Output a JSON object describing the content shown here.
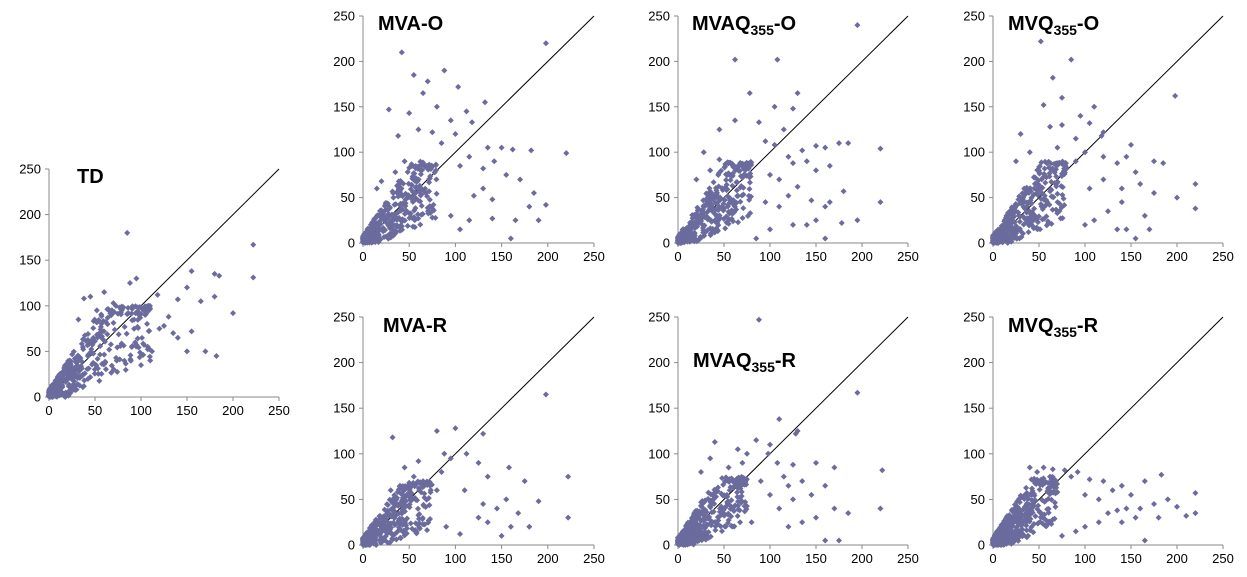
{
  "chart_data": [
    {
      "type": "scatter",
      "title_parts": [
        "TD"
      ],
      "xlim": [
        0,
        250
      ],
      "ylim": [
        0,
        250
      ],
      "ticks": [
        0,
        50,
        100,
        150,
        200,
        250
      ],
      "reference_line": "y = x",
      "marker_color": "#6b6b9e",
      "outliers": [
        [
          85,
          180
        ],
        [
          222,
          167
        ],
        [
          155,
          138
        ],
        [
          180,
          135
        ],
        [
          185,
          133
        ],
        [
          222,
          131
        ],
        [
          95,
          130
        ],
        [
          88,
          125
        ],
        [
          150,
          120
        ],
        [
          180,
          110
        ],
        [
          140,
          107
        ],
        [
          165,
          105
        ],
        [
          200,
          92
        ],
        [
          125,
          78
        ],
        [
          120,
          75
        ],
        [
          135,
          70
        ],
        [
          140,
          65
        ],
        [
          150,
          50
        ],
        [
          170,
          50
        ],
        [
          182,
          45
        ],
        [
          110,
          40
        ],
        [
          100,
          35
        ],
        [
          155,
          72
        ],
        [
          130,
          88
        ],
        [
          108,
          100
        ],
        [
          118,
          112
        ],
        [
          112,
          50
        ],
        [
          60,
          115
        ],
        [
          70,
          103
        ],
        [
          45,
          110
        ],
        [
          38,
          108
        ],
        [
          52,
          95
        ],
        [
          32,
          85
        ]
      ],
      "cluster": {
        "x_range": [
          0,
          110
        ],
        "y_range": [
          0,
          100
        ],
        "slope": 1.0
      }
    },
    {
      "type": "scatter",
      "title_parts": [
        "MVA-O"
      ],
      "xlim": [
        0,
        250
      ],
      "ylim": [
        0,
        250
      ],
      "ticks": [
        0,
        50,
        100,
        150,
        200,
        250
      ],
      "reference_line": "y = x",
      "marker_color": "#6b6b9e",
      "outliers": [
        [
          198,
          220
        ],
        [
          42,
          210
        ],
        [
          88,
          190
        ],
        [
          55,
          185
        ],
        [
          70,
          178
        ],
        [
          103,
          172
        ],
        [
          65,
          165
        ],
        [
          132,
          155
        ],
        [
          80,
          150
        ],
        [
          28,
          147
        ],
        [
          112,
          145
        ],
        [
          50,
          143
        ],
        [
          95,
          135
        ],
        [
          118,
          133
        ],
        [
          60,
          125
        ],
        [
          75,
          122
        ],
        [
          100,
          120
        ],
        [
          85,
          110
        ],
        [
          135,
          105
        ],
        [
          150,
          105
        ],
        [
          162,
          103
        ],
        [
          182,
          102
        ],
        [
          220,
          99
        ],
        [
          115,
          95
        ],
        [
          142,
          90
        ],
        [
          105,
          85
        ],
        [
          130,
          82
        ],
        [
          155,
          75
        ],
        [
          170,
          70
        ],
        [
          130,
          60
        ],
        [
          185,
          55
        ],
        [
          120,
          52
        ],
        [
          140,
          48
        ],
        [
          198,
          42
        ],
        [
          190,
          25
        ],
        [
          165,
          25
        ],
        [
          140,
          27
        ],
        [
          115,
          25
        ],
        [
          95,
          30
        ],
        [
          75,
          28
        ],
        [
          160,
          5
        ],
        [
          105,
          15
        ],
        [
          180,
          40
        ],
        [
          45,
          90
        ],
        [
          35,
          78
        ],
        [
          20,
          68
        ],
        [
          15,
          60
        ],
        [
          38,
          118
        ]
      ],
      "cluster": {
        "x_range": [
          0,
          80
        ],
        "y_range": [
          0,
          90
        ],
        "slope": 1.0
      }
    },
    {
      "type": "scatter",
      "title_parts": [
        "MVAQ",
        "355",
        "-O"
      ],
      "xlim": [
        0,
        250
      ],
      "ylim": [
        0,
        250
      ],
      "ticks": [
        0,
        50,
        100,
        150,
        200,
        250
      ],
      "reference_line": "y = x",
      "marker_color": "#6b6b9e",
      "outliers": [
        [
          195,
          240
        ],
        [
          108,
          202
        ],
        [
          62,
          202
        ],
        [
          78,
          165
        ],
        [
          130,
          165
        ],
        [
          105,
          150
        ],
        [
          125,
          148
        ],
        [
          62,
          135
        ],
        [
          88,
          133
        ],
        [
          115,
          125
        ],
        [
          45,
          125
        ],
        [
          95,
          112
        ],
        [
          105,
          108
        ],
        [
          150,
          107
        ],
        [
          160,
          105
        ],
        [
          175,
          110
        ],
        [
          185,
          110
        ],
        [
          220,
          104
        ],
        [
          135,
          102
        ],
        [
          120,
          95
        ],
        [
          140,
          90
        ],
        [
          125,
          88
        ],
        [
          165,
          85
        ],
        [
          150,
          80
        ],
        [
          100,
          75
        ],
        [
          110,
          70
        ],
        [
          130,
          62
        ],
        [
          180,
          57
        ],
        [
          120,
          52
        ],
        [
          145,
          47
        ],
        [
          165,
          45
        ],
        [
          220,
          45
        ],
        [
          95,
          45
        ],
        [
          160,
          40
        ],
        [
          110,
          40
        ],
        [
          195,
          25
        ],
        [
          178,
          22
        ],
        [
          150,
          25
        ],
        [
          140,
          20
        ],
        [
          125,
          20
        ],
        [
          100,
          15
        ],
        [
          85,
          5
        ],
        [
          160,
          5
        ],
        [
          28,
          100
        ],
        [
          45,
          92
        ],
        [
          20,
          70
        ],
        [
          35,
          80
        ]
      ],
      "cluster": {
        "x_range": [
          0,
          80
        ],
        "y_range": [
          0,
          90
        ],
        "slope": 1.0
      }
    },
    {
      "type": "scatter",
      "title_parts": [
        "MVQ",
        "355",
        "-O"
      ],
      "xlim": [
        0,
        250
      ],
      "ylim": [
        0,
        250
      ],
      "ticks": [
        0,
        50,
        100,
        150,
        200,
        250
      ],
      "reference_line": "y = x",
      "marker_color": "#6b6b9e",
      "outliers": [
        [
          52,
          222
        ],
        [
          85,
          202
        ],
        [
          65,
          182
        ],
        [
          75,
          160
        ],
        [
          55,
          152
        ],
        [
          110,
          150
        ],
        [
          198,
          162
        ],
        [
          95,
          140
        ],
        [
          75,
          130
        ],
        [
          62,
          128
        ],
        [
          105,
          132
        ],
        [
          120,
          122
        ],
        [
          118,
          118
        ],
        [
          90,
          115
        ],
        [
          30,
          120
        ],
        [
          150,
          108
        ],
        [
          70,
          105
        ],
        [
          100,
          100
        ],
        [
          120,
          95
        ],
        [
          145,
          95
        ],
        [
          175,
          90
        ],
        [
          185,
          88
        ],
        [
          90,
          90
        ],
        [
          135,
          88
        ],
        [
          155,
          78
        ],
        [
          160,
          65
        ],
        [
          120,
          70
        ],
        [
          105,
          60
        ],
        [
          140,
          60
        ],
        [
          175,
          55
        ],
        [
          200,
          50
        ],
        [
          220,
          65
        ],
        [
          140,
          45
        ],
        [
          125,
          35
        ],
        [
          220,
          38
        ],
        [
          165,
          30
        ],
        [
          170,
          15
        ],
        [
          145,
          15
        ],
        [
          135,
          15
        ],
        [
          155,
          5
        ],
        [
          100,
          20
        ],
        [
          110,
          25
        ],
        [
          40,
          100
        ],
        [
          25,
          90
        ],
        [
          50,
          80
        ]
      ],
      "cluster": {
        "x_range": [
          0,
          80
        ],
        "y_range": [
          0,
          90
        ],
        "slope": 1.0
      }
    },
    {
      "type": "scatter",
      "title_parts": [
        "MVA-R"
      ],
      "xlim": [
        0,
        250
      ],
      "ylim": [
        0,
        250
      ],
      "ticks": [
        0,
        50,
        100,
        150,
        200,
        250
      ],
      "reference_line": "y = x",
      "marker_color": "#6b6b9e",
      "outliers": [
        [
          198,
          165
        ],
        [
          100,
          128
        ],
        [
          80,
          125
        ],
        [
          130,
          122
        ],
        [
          32,
          118
        ],
        [
          112,
          100
        ],
        [
          88,
          100
        ],
        [
          95,
          95
        ],
        [
          125,
          90
        ],
        [
          60,
          92
        ],
        [
          158,
          85
        ],
        [
          85,
          80
        ],
        [
          135,
          75
        ],
        [
          175,
          70
        ],
        [
          222,
          75
        ],
        [
          80,
          60
        ],
        [
          110,
          60
        ],
        [
          155,
          50
        ],
        [
          190,
          48
        ],
        [
          130,
          45
        ],
        [
          145,
          40
        ],
        [
          168,
          35
        ],
        [
          125,
          30
        ],
        [
          135,
          25
        ],
        [
          160,
          20
        ],
        [
          180,
          20
        ],
        [
          222,
          30
        ],
        [
          150,
          10
        ],
        [
          105,
          12
        ],
        [
          90,
          20
        ],
        [
          45,
          85
        ],
        [
          55,
          75
        ],
        [
          65,
          70
        ],
        [
          40,
          65
        ],
        [
          30,
          60
        ]
      ],
      "cluster": {
        "x_range": [
          0,
          75
        ],
        "y_range": [
          0,
          70
        ],
        "slope": 0.9
      }
    },
    {
      "type": "scatter",
      "title_parts": [
        "MVAQ",
        "355",
        "-R"
      ],
      "xlim": [
        0,
        250
      ],
      "ylim": [
        0,
        250
      ],
      "ticks": [
        0,
        50,
        100,
        150,
        200,
        250
      ],
      "reference_line": "y = x",
      "marker_color": "#6b6b9e",
      "outliers": [
        [
          88,
          247
        ],
        [
          195,
          167
        ],
        [
          110,
          138
        ],
        [
          130,
          125
        ],
        [
          128,
          122
        ],
        [
          40,
          113
        ],
        [
          85,
          115
        ],
        [
          100,
          110
        ],
        [
          65,
          105
        ],
        [
          75,
          100
        ],
        [
          98,
          100
        ],
        [
          108,
          90
        ],
        [
          125,
          88
        ],
        [
          150,
          90
        ],
        [
          170,
          85
        ],
        [
          222,
          82
        ],
        [
          70,
          90
        ],
        [
          55,
          85
        ],
        [
          115,
          75
        ],
        [
          90,
          70
        ],
        [
          135,
          70
        ],
        [
          160,
          65
        ],
        [
          120,
          65
        ],
        [
          145,
          55
        ],
        [
          100,
          55
        ],
        [
          125,
          50
        ],
        [
          170,
          40
        ],
        [
          110,
          40
        ],
        [
          185,
          35
        ],
        [
          220,
          40
        ],
        [
          150,
          30
        ],
        [
          135,
          25
        ],
        [
          120,
          20
        ],
        [
          175,
          5
        ],
        [
          160,
          5
        ],
        [
          80,
          25
        ],
        [
          35,
          95
        ],
        [
          25,
          80
        ]
      ],
      "cluster": {
        "x_range": [
          0,
          75
        ],
        "y_range": [
          0,
          75
        ],
        "slope": 1.0
      }
    },
    {
      "type": "scatter",
      "title_parts": [
        "MVQ",
        "355",
        "-R"
      ],
      "xlim": [
        0,
        250
      ],
      "ylim": [
        0,
        250
      ],
      "ticks": [
        0,
        50,
        100,
        150,
        200,
        250
      ],
      "reference_line": "y = x",
      "marker_color": "#6b6b9e",
      "outliers": [
        [
          55,
          85
        ],
        [
          65,
          83
        ],
        [
          78,
          82
        ],
        [
          40,
          85
        ],
        [
          48,
          80
        ],
        [
          92,
          80
        ],
        [
          85,
          75
        ],
        [
          105,
          72
        ],
        [
          120,
          70
        ],
        [
          140,
          65
        ],
        [
          165,
          70
        ],
        [
          183,
          77
        ],
        [
          130,
          60
        ],
        [
          150,
          55
        ],
        [
          100,
          55
        ],
        [
          115,
          50
        ],
        [
          220,
          57
        ],
        [
          190,
          50
        ],
        [
          175,
          45
        ],
        [
          200,
          42
        ],
        [
          160,
          40
        ],
        [
          145,
          40
        ],
        [
          135,
          38
        ],
        [
          125,
          35
        ],
        [
          220,
          35
        ],
        [
          180,
          30
        ],
        [
          210,
          32
        ],
        [
          155,
          30
        ],
        [
          140,
          25
        ],
        [
          115,
          25
        ],
        [
          100,
          20
        ],
        [
          90,
          15
        ],
        [
          165,
          5
        ],
        [
          75,
          10
        ],
        [
          60,
          62
        ],
        [
          70,
          58
        ]
      ],
      "cluster": {
        "x_range": [
          0,
          70
        ],
        "y_range": [
          0,
          75
        ],
        "slope": 1.0
      }
    }
  ]
}
